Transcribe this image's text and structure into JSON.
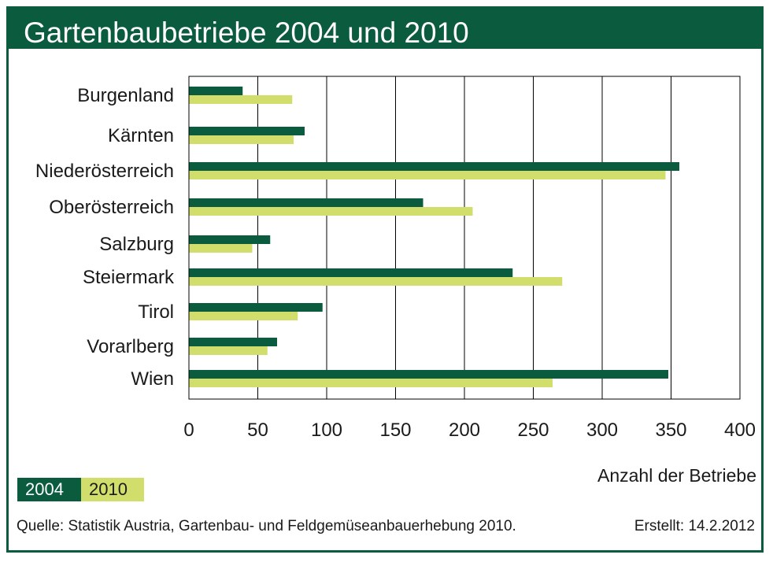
{
  "title": "Gartenbaubetriebe 2004 und 2010",
  "colors": {
    "series_2004": "#0b5b3f",
    "series_2010": "#d1de6b",
    "frame": "#0b5b3f",
    "grid": "#000000"
  },
  "chart_data": {
    "type": "bar",
    "orientation": "horizontal",
    "title": "Gartenbaubetriebe 2004 und 2010",
    "categories": [
      "Burgenland",
      "Kärnten",
      "Niederösterreich",
      "Oberösterreich",
      "Salzburg",
      "Steiermark",
      "Tirol",
      "Vorarlberg",
      "Wien"
    ],
    "series": [
      {
        "name": "2004",
        "values": [
          39,
          84,
          356,
          170,
          59,
          235,
          97,
          64,
          348
        ]
      },
      {
        "name": "2010",
        "values": [
          75,
          76,
          346,
          206,
          46,
          271,
          79,
          57,
          264
        ]
      }
    ],
    "xlabel": "Anzahl der Betriebe",
    "ylabel": "",
    "xlim": [
      0,
      400
    ],
    "xticks": [
      0,
      50,
      100,
      150,
      200,
      250,
      300,
      350,
      400
    ],
    "grid": "vertical",
    "legend": "bottom-left"
  },
  "legend": {
    "label_2004": "2004",
    "label_2010": "2010"
  },
  "axis_title": "Anzahl der Betriebe",
  "source": "Quelle: Statistik Austria, Gartenbau- und Feldgemüseanbauerhebung 2010.",
  "created": "Erstellt: 14.2.2012"
}
